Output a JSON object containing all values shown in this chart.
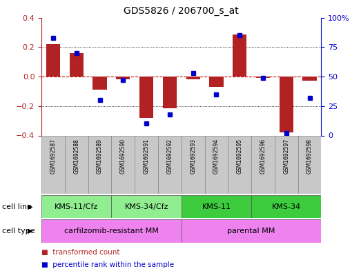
{
  "title": "GDS5826 / 206700_s_at",
  "samples": [
    "GSM1692587",
    "GSM1692588",
    "GSM1692589",
    "GSM1692590",
    "GSM1692591",
    "GSM1692592",
    "GSM1692593",
    "GSM1692594",
    "GSM1692595",
    "GSM1692596",
    "GSM1692597",
    "GSM1692598"
  ],
  "transformed_count": [
    0.22,
    0.16,
    -0.09,
    -0.02,
    -0.28,
    -0.215,
    -0.02,
    -0.07,
    0.285,
    -0.01,
    -0.38,
    -0.03
  ],
  "percentile_rank": [
    83,
    70,
    30,
    47,
    10,
    18,
    53,
    35,
    85,
    49,
    2,
    32
  ],
  "bar_color": "#B22222",
  "dot_color": "#0000CD",
  "zero_line_color": "#CC0000",
  "grid_color": "#000000",
  "ylim_left": [
    -0.4,
    0.4
  ],
  "ylim_right": [
    0,
    100
  ],
  "yticks_left": [
    -0.4,
    -0.2,
    0.0,
    0.2,
    0.4
  ],
  "yticks_right": [
    0,
    25,
    50,
    75,
    100
  ],
  "cell_line_groups": [
    {
      "label": "KMS-11/Cfz",
      "start": 0,
      "end": 2,
      "color": "#90EE90"
    },
    {
      "label": "KMS-34/Cfz",
      "start": 3,
      "end": 5,
      "color": "#90EE90"
    },
    {
      "label": "KMS-11",
      "start": 6,
      "end": 8,
      "color": "#3DCC3D"
    },
    {
      "label": "KMS-34",
      "start": 9,
      "end": 11,
      "color": "#3DCC3D"
    }
  ],
  "cell_type_groups": [
    {
      "label": "carfilzomib-resistant MM",
      "start": 0,
      "end": 5,
      "color": "#EE82EE"
    },
    {
      "label": "parental MM",
      "start": 6,
      "end": 11,
      "color": "#EE82EE"
    }
  ],
  "cell_line_label": "cell line",
  "cell_type_label": "cell type",
  "legend_red_label": "transformed count",
  "legend_blue_label": "percentile rank within the sample",
  "sample_box_color": "#C8C8C8",
  "plot_bg_color": "#FFFFFF"
}
